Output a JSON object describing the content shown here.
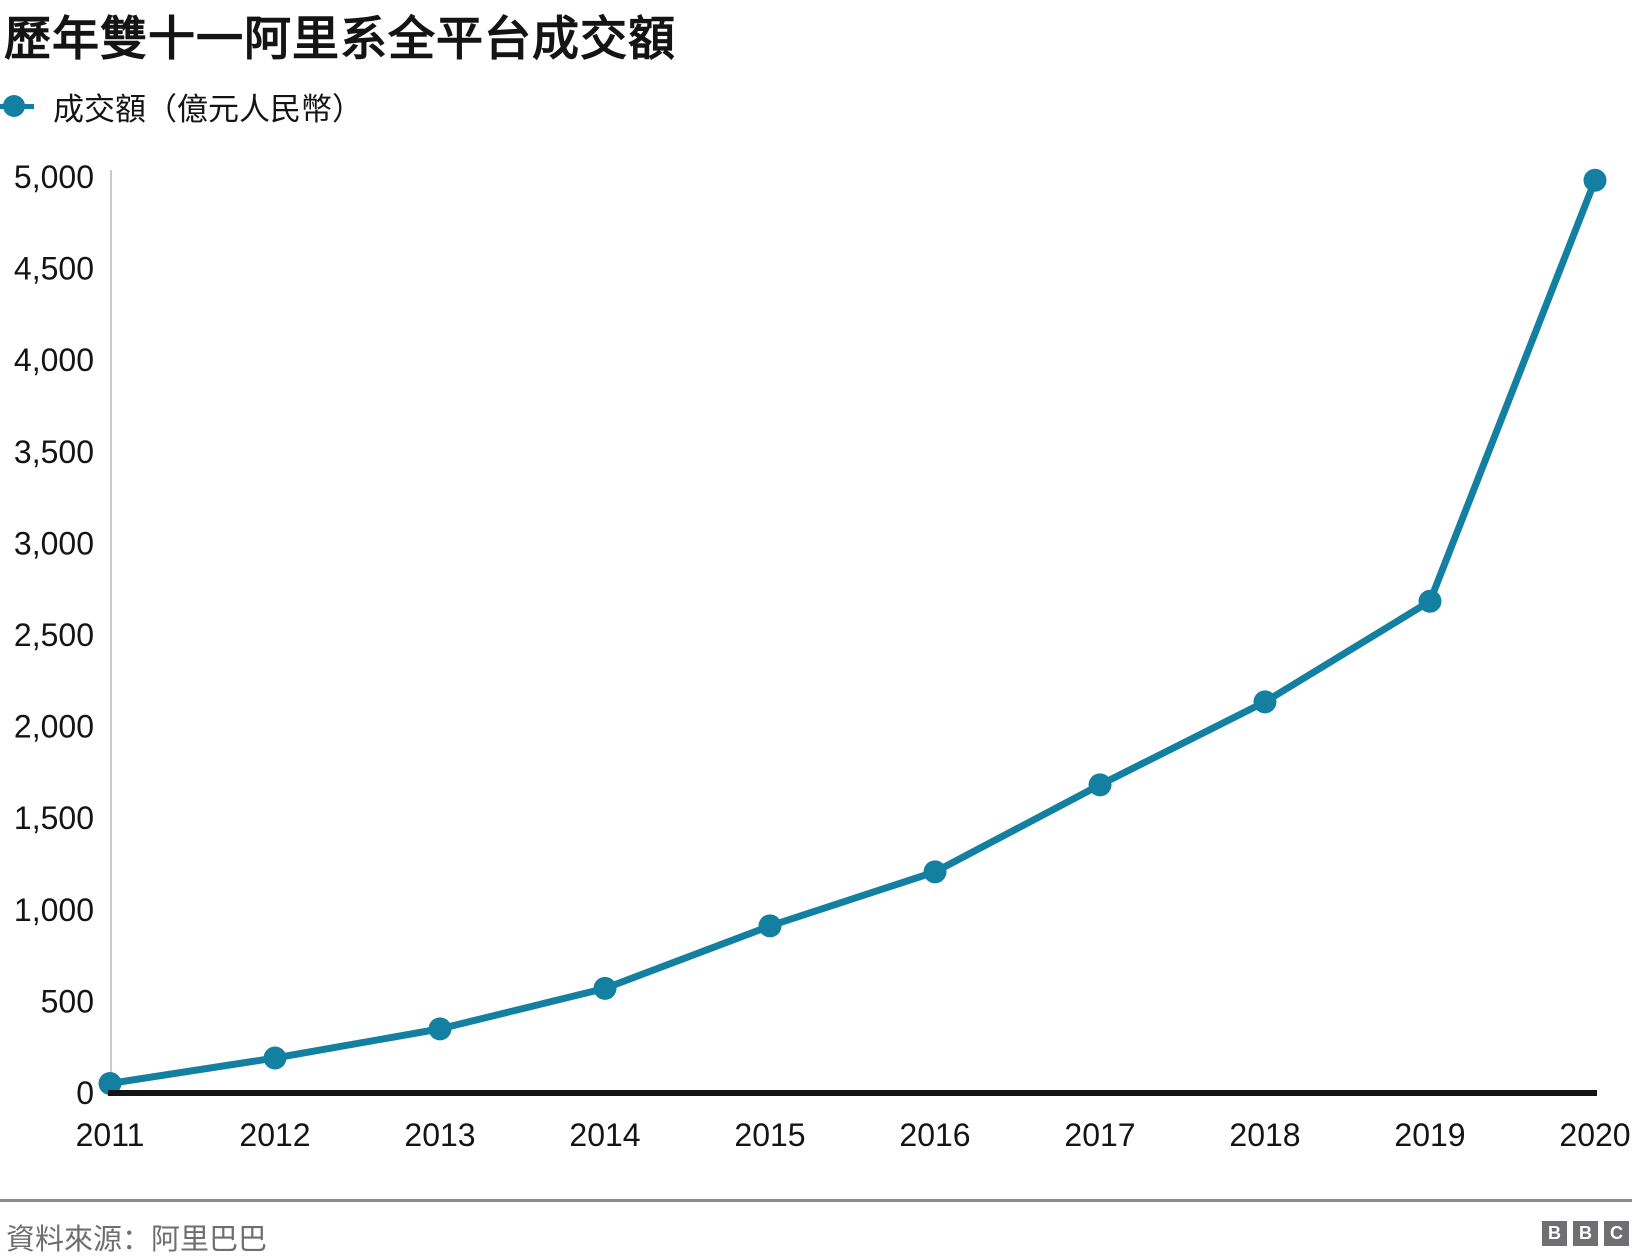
{
  "header": {
    "title": "歷年雙十一阿里系全平台成交額"
  },
  "legend": {
    "label": "成交額（億元人民幣）"
  },
  "chart_data": {
    "type": "line",
    "title": "歷年雙十一阿里系全平台成交額",
    "categories": [
      "2011",
      "2012",
      "2013",
      "2014",
      "2015",
      "2016",
      "2017",
      "2018",
      "2019",
      "2020"
    ],
    "series": [
      {
        "name": "成交額（億元人民幣）",
        "values": [
          52,
          191,
          350,
          571,
          912,
          1207,
          1682,
          2135,
          2684,
          4982
        ]
      }
    ],
    "xlabel": "",
    "ylabel": "成交額（億元人民幣）",
    "ylim": [
      0,
      5000
    ],
    "ytick_step": 500,
    "ytick_labels": [
      "0",
      "500",
      "1,000",
      "1,500",
      "2,000",
      "2,500",
      "3,000",
      "3,500",
      "4,000",
      "4,500",
      "5,000"
    ],
    "grid": false,
    "legend_position": "top-left",
    "line_color": "#1380A1",
    "axis_color": "#141414",
    "y_axis_line_color": "#cccccc",
    "tick_label_color": "#141414"
  },
  "footer": {
    "source": "資料來源：阿里巴巴",
    "logo_letters": [
      "B",
      "B",
      "C"
    ]
  }
}
